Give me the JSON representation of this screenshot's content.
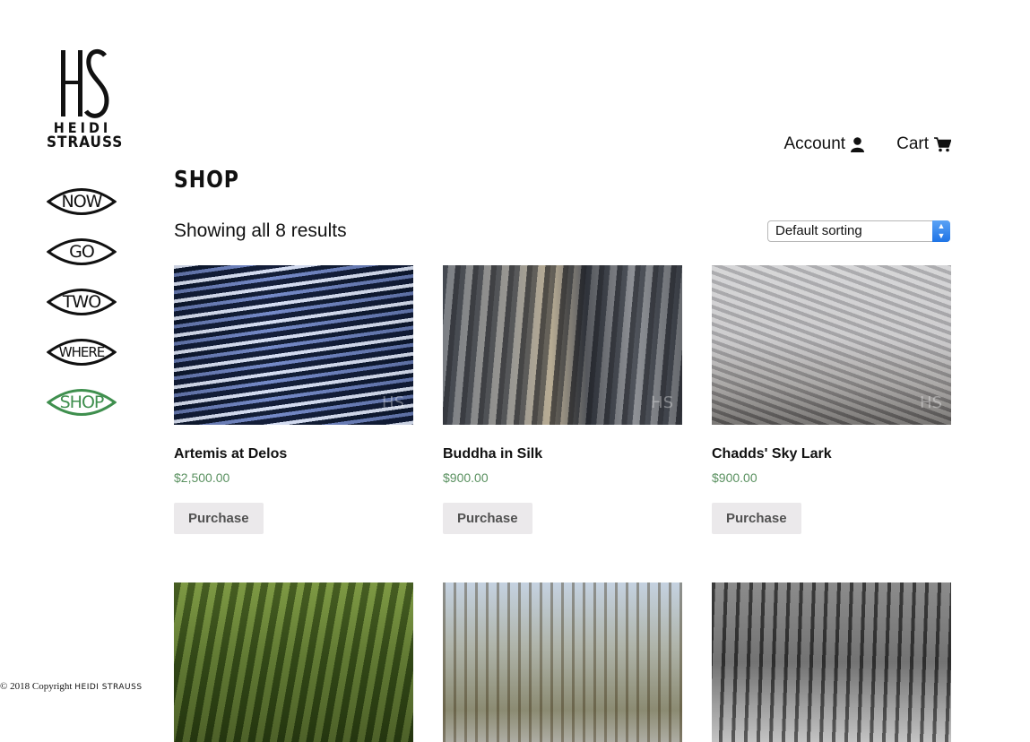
{
  "brand": {
    "monogram": "HS",
    "line1": "HEIDI",
    "line2": "STRAUSS"
  },
  "side_nav": [
    {
      "label": "NOW",
      "active": false
    },
    {
      "label": "GO",
      "active": false
    },
    {
      "label": "TWO",
      "active": false
    },
    {
      "label": "WHERE",
      "active": false
    },
    {
      "label": "SHOP",
      "active": true
    }
  ],
  "top_nav": {
    "account": "Account",
    "account_icon": "user-icon",
    "cart": "Cart",
    "cart_icon": "cart-icon"
  },
  "page_title": "SHOP",
  "result_count": "Showing all 8 results",
  "sort": {
    "selected": "Default sorting"
  },
  "products": [
    {
      "name": "Artemis at Delos",
      "price": "$2,500.00",
      "button": "Purchase"
    },
    {
      "name": "Buddha in Silk",
      "price": "$900.00",
      "button": "Purchase"
    },
    {
      "name": "Chadds' Sky Lark",
      "price": "$900.00",
      "button": "Purchase"
    },
    {
      "name": "",
      "price": "",
      "button": ""
    },
    {
      "name": "",
      "price": "",
      "button": ""
    },
    {
      "name": "",
      "price": "",
      "button": ""
    }
  ],
  "footer": {
    "copyright": "© 2018 Copyright",
    "copyright_name": "HEIDI STRAUSS"
  },
  "colors": {
    "accent_green": "#3f8f4e",
    "price_green": "#5a9160",
    "button_bg": "#ebe9eb"
  }
}
